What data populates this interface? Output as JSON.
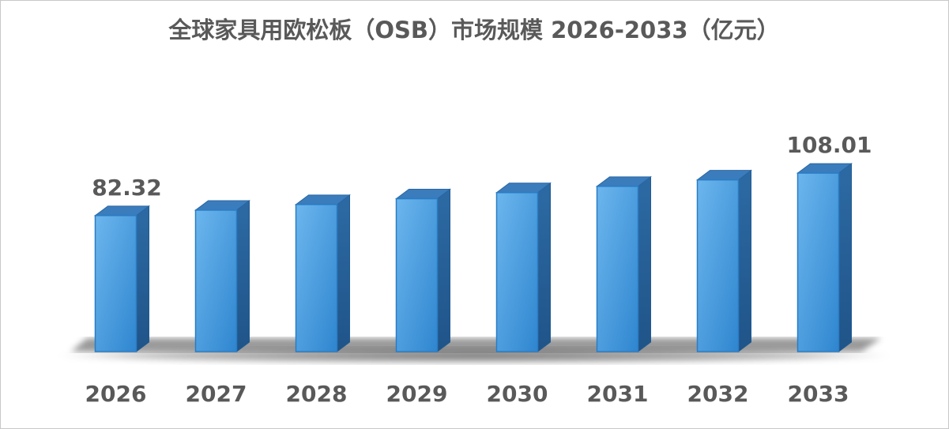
{
  "chart_data": {
    "type": "bar3d",
    "title": "全球家具用欧松板（OSB）市场规模 2026-2033（亿元）",
    "categories": [
      "2026",
      "2027",
      "2028",
      "2029",
      "2030",
      "2031",
      "2032",
      "2033"
    ],
    "values": [
      82.32,
      85.6,
      89.0,
      92.5,
      96.2,
      100.0,
      103.9,
      108.01
    ],
    "value_labels": [
      "82.32",
      null,
      null,
      null,
      null,
      null,
      null,
      "108.01"
    ],
    "color": "#4a9ee0",
    "ylim": [
      0,
      120
    ]
  }
}
